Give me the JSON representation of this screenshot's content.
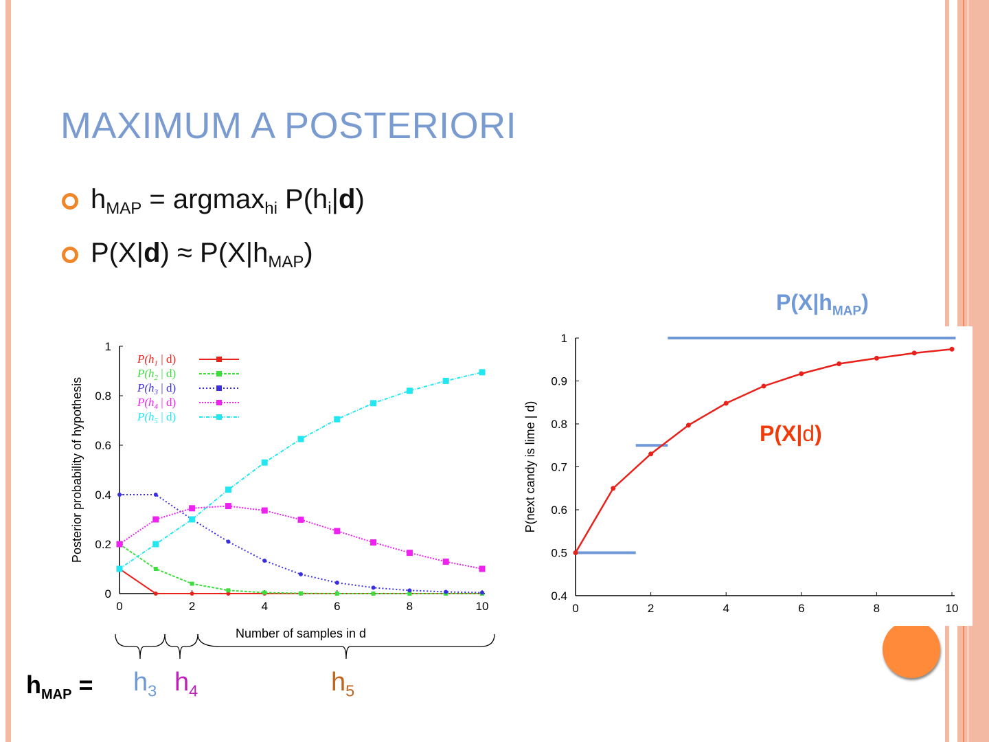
{
  "slide": {
    "title": "MAXIMUM A POSTERIORI",
    "bullets": [
      {
        "main": "h",
        "sub": "MAP",
        "rest1": " = argmax",
        "sub2": "hi",
        "rest2": " P(h",
        "sub3": "i",
        "rest3": "|",
        "bold": "d",
        "rest4": ")"
      },
      {
        "p1": "P(X|",
        "bold": "d",
        "p2": ") ≈ P(X|h",
        "sub": "MAP",
        "p3": ")"
      }
    ],
    "colors": {
      "title": "#7a9bd0",
      "bullet": "#f0862a",
      "stripe": "#f3b9a3",
      "circle": "#ff8a3a"
    }
  },
  "annotations": {
    "hmap_label": {
      "h": "h",
      "sub": "MAP",
      "eq": " ="
    },
    "h3": {
      "h": "h",
      "sub": "3"
    },
    "h4": {
      "h": "h",
      "sub": "4"
    },
    "h5": {
      "h": "h",
      "sub": "5"
    },
    "p_x_hmap": {
      "text": "P(X|h",
      "sub": "MAP",
      "close": ")"
    },
    "p_x_d": {
      "bold": "P(X|",
      "normal": "d",
      "close": ")"
    }
  },
  "chart_data": [
    {
      "type": "line",
      "xlabel": "Number of samples in d",
      "ylabel": "Posterior probability of hypothesis",
      "xlim": [
        0,
        10
      ],
      "ylim": [
        0,
        1
      ],
      "x_ticks": [
        0,
        2,
        4,
        6,
        8,
        10
      ],
      "y_ticks": [
        0,
        0.2,
        0.4,
        0.6,
        0.8,
        1
      ],
      "x": [
        0,
        1,
        2,
        3,
        4,
        5,
        6,
        7,
        8,
        9,
        10
      ],
      "legend_position": "top-left",
      "series": [
        {
          "name": "P(h1 | d)",
          "base": "P(h",
          "idx": "1",
          "tail": " | d)",
          "color": "#e8211a",
          "marker": "dot",
          "values": [
            0.1,
            0,
            0,
            0,
            0,
            0,
            0,
            0,
            0,
            0,
            0
          ]
        },
        {
          "name": "P(h2 | d)",
          "base": "P(h",
          "idx": "2",
          "tail": " | d)",
          "color": "#3fdc3f",
          "marker": "x",
          "values": [
            0.2,
            0.1,
            0.04,
            0.013,
            0.004,
            0.001,
            0,
            0,
            0,
            0,
            0
          ]
        },
        {
          "name": "P(h3 | d)",
          "base": "P(h",
          "idx": "3",
          "tail": " | d)",
          "color": "#3a2fe0",
          "marker": "dot",
          "values": [
            0.4,
            0.4,
            0.3,
            0.21,
            0.133,
            0.078,
            0.044,
            0.024,
            0.013,
            0.007,
            0.004
          ]
        },
        {
          "name": "P(h4 | d)",
          "base": "P(h",
          "idx": "4",
          "tail": " | d)",
          "color": "#ee22ee",
          "marker": "square",
          "values": [
            0.2,
            0.3,
            0.345,
            0.354,
            0.336,
            0.299,
            0.253,
            0.207,
            0.165,
            0.129,
            0.1
          ]
        },
        {
          "name": "P(h5 | d)",
          "base": "P(h",
          "idx": "5",
          "tail": " | d)",
          "color": "#22e6f0",
          "marker": "square",
          "values": [
            0.1,
            0.2,
            0.3,
            0.42,
            0.53,
            0.625,
            0.705,
            0.77,
            0.82,
            0.86,
            0.895
          ]
        }
      ]
    },
    {
      "type": "line",
      "xlabel": "",
      "ylabel": "P(next candy is lime | d)",
      "xlim": [
        0,
        10
      ],
      "ylim": [
        0.4,
        1
      ],
      "x_ticks": [
        0,
        2,
        4,
        6,
        8,
        10
      ],
      "y_ticks": [
        0.4,
        0.5,
        0.6,
        0.7,
        0.8,
        0.9,
        1
      ],
      "x": [
        0,
        1,
        2,
        3,
        4,
        5,
        6,
        7,
        8,
        9,
        10
      ],
      "series": [
        {
          "color": "#e8211a",
          "values": [
            0.5,
            0.65,
            0.73,
            0.797,
            0.848,
            0.888,
            0.917,
            0.94,
            0.953,
            0.965,
            0.974
          ]
        }
      ],
      "map_steps": [
        {
          "x_from": 0,
          "x_to": 1.6,
          "y": 0.5
        },
        {
          "x_from": 1.6,
          "x_to": 2.45,
          "y": 0.75
        },
        {
          "x_from": 2.45,
          "x_to": 10.1,
          "y": 1
        }
      ],
      "map_color": "#6f98d6"
    }
  ]
}
